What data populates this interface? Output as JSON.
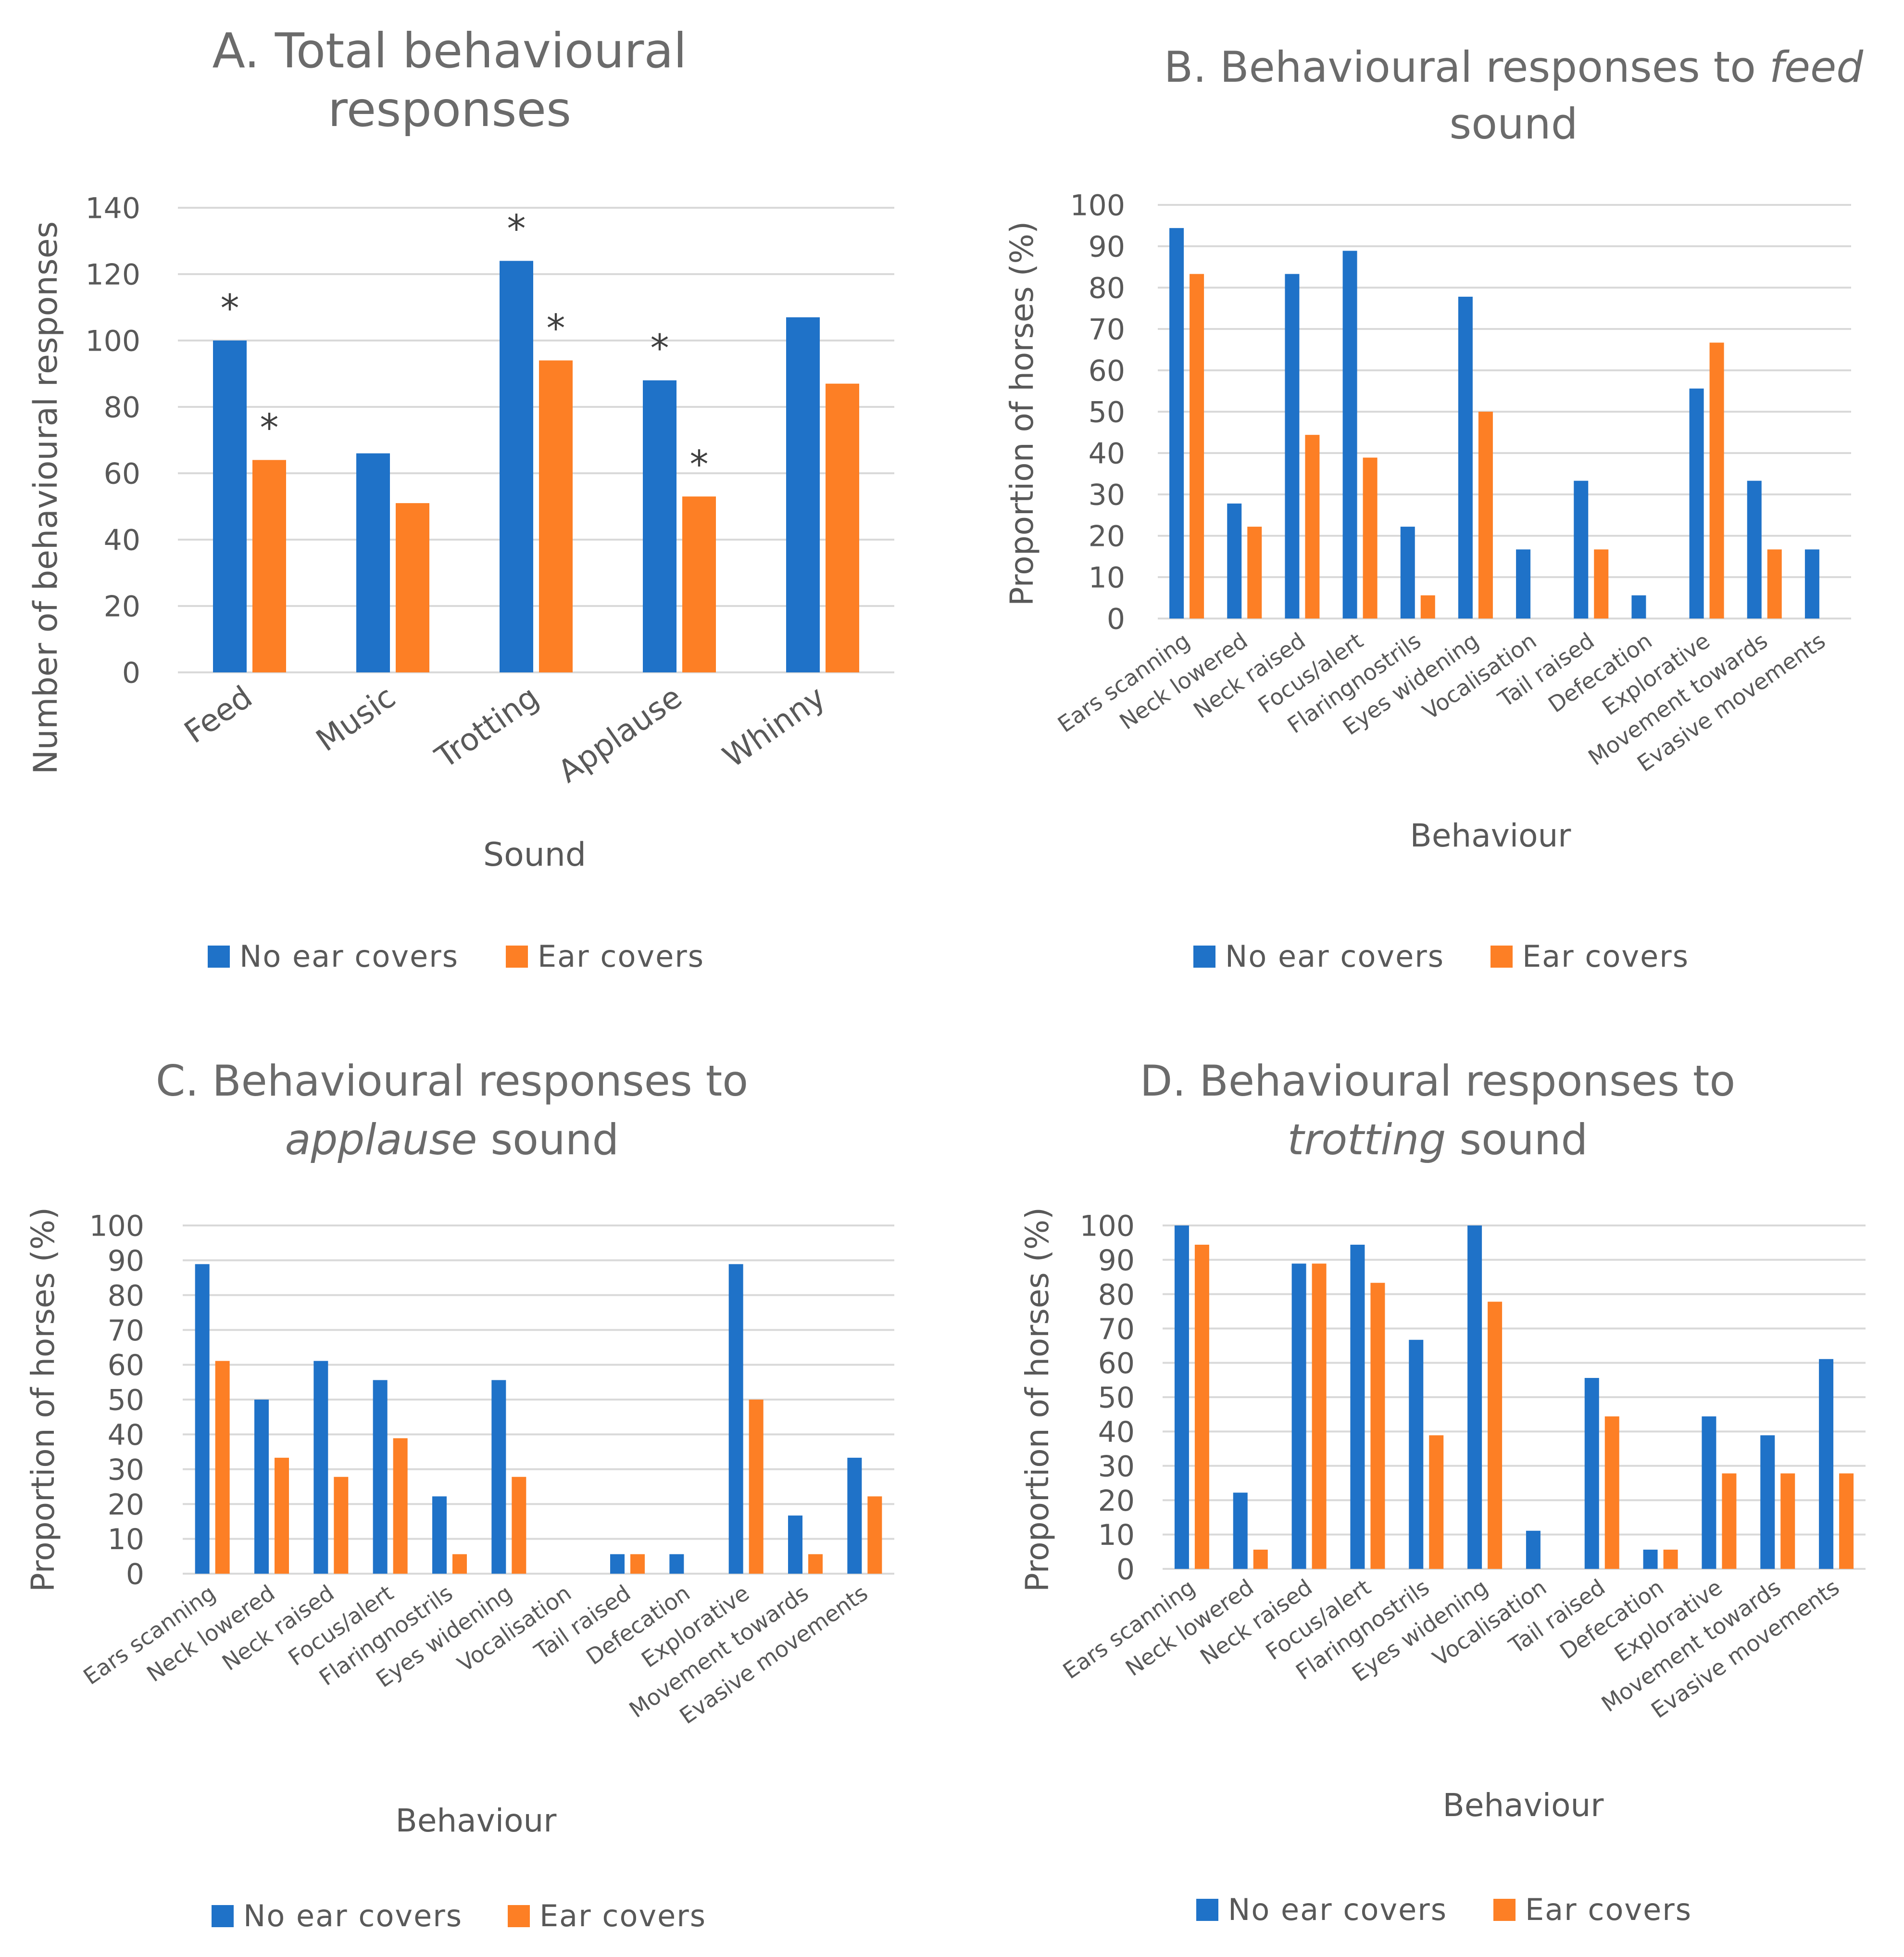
{
  "colors": {
    "no_ear_covers": "#1f72c8",
    "ear_covers": "#fd7f25"
  },
  "chart_data": [
    {
      "id": "A",
      "type": "bar",
      "title_lines": [
        [
          {
            "text": "A. Total behavioural",
            "italic": false
          }
        ],
        [
          {
            "text": "responses",
            "italic": false
          }
        ]
      ],
      "xlabel": "Sound",
      "ylabel": "Number of behavioural responses",
      "ylim": [
        0,
        140
      ],
      "yticks": [
        0,
        20,
        40,
        60,
        80,
        100,
        120,
        140
      ],
      "categories": [
        "Feed",
        "Music",
        "Trotting",
        "Applause",
        "Whinny"
      ],
      "series": [
        {
          "name": "No ear covers",
          "values": [
            100,
            66,
            124,
            88,
            107
          ],
          "significant": [
            true,
            false,
            true,
            true,
            false
          ]
        },
        {
          "name": "Ear covers",
          "values": [
            64,
            51,
            94,
            53,
            87
          ],
          "significant": [
            true,
            false,
            true,
            true,
            false
          ]
        }
      ],
      "significance_marker": "*",
      "legend": [
        "No ear covers",
        "Ear covers"
      ],
      "legend_position": "bottom"
    },
    {
      "id": "B",
      "type": "bar",
      "title_lines": [
        [
          {
            "text": "B. Behavioural responses to ",
            "italic": false
          },
          {
            "text": "feed",
            "italic": true
          }
        ],
        [
          {
            "text": "sound",
            "italic": false
          }
        ]
      ],
      "xlabel": "Behaviour",
      "ylabel": "Proportion of horses (%)",
      "ylim": [
        0,
        100
      ],
      "yticks": [
        0,
        10,
        20,
        30,
        40,
        50,
        60,
        70,
        80,
        90,
        100
      ],
      "categories": [
        "Ears scanning",
        "Neck lowered",
        "Neck raised",
        "Focus/alert",
        "Flaringnostrils",
        "Eyes widening",
        "Vocalisation",
        "Tail raised",
        "Defecation",
        "Explorative",
        "Movement towards",
        "Evasive movements"
      ],
      "series": [
        {
          "name": "No ear covers",
          "values": [
            94.4,
            27.8,
            83.3,
            88.9,
            22.2,
            77.8,
            16.7,
            33.3,
            5.6,
            55.6,
            33.3,
            16.7
          ]
        },
        {
          "name": "Ear covers",
          "values": [
            83.3,
            22.2,
            44.4,
            38.9,
            5.6,
            50.0,
            0,
            16.7,
            0,
            66.7,
            16.7,
            0
          ]
        }
      ],
      "legend": [
        "No ear covers",
        "Ear covers"
      ],
      "legend_position": "bottom"
    },
    {
      "id": "C",
      "type": "bar",
      "title_lines": [
        [
          {
            "text": "C. Behavioural responses to",
            "italic": false
          }
        ],
        [
          {
            "text": "applause",
            "italic": true
          },
          {
            "text": " sound",
            "italic": false
          }
        ]
      ],
      "xlabel": "Behaviour",
      "ylabel": "Proportion of horses (%)",
      "ylim": [
        0,
        100
      ],
      "yticks": [
        0,
        10,
        20,
        30,
        40,
        50,
        60,
        70,
        80,
        90,
        100
      ],
      "categories": [
        "Ears scanning",
        "Neck lowered",
        "Neck raised",
        "Focus/alert",
        "Flaringnostrils",
        "Eyes widening",
        "Vocalisation",
        "Tail raised",
        "Defecation",
        "Explorative",
        "Movement towards",
        "Evasive movements"
      ],
      "series": [
        {
          "name": "No ear covers",
          "values": [
            88.9,
            50.0,
            61.1,
            55.6,
            22.2,
            55.6,
            0,
            5.6,
            5.6,
            88.9,
            16.7,
            33.3
          ]
        },
        {
          "name": "Ear covers",
          "values": [
            61.1,
            33.3,
            27.8,
            38.9,
            5.6,
            27.8,
            0,
            5.6,
            0,
            50.0,
            5.6,
            22.2
          ]
        }
      ],
      "legend": [
        "No ear covers",
        "Ear covers"
      ],
      "legend_position": "bottom"
    },
    {
      "id": "D",
      "type": "bar",
      "title_lines": [
        [
          {
            "text": "D. Behavioural responses to",
            "italic": false
          }
        ],
        [
          {
            "text": "trotting",
            "italic": true
          },
          {
            "text": " sound",
            "italic": false
          }
        ]
      ],
      "xlabel": "Behaviour",
      "ylabel": "Proportion of horses (%)",
      "ylim": [
        0,
        100
      ],
      "yticks": [
        0,
        10,
        20,
        30,
        40,
        50,
        60,
        70,
        80,
        90,
        100
      ],
      "categories": [
        "Ears scanning",
        "Neck lowered",
        "Neck raised",
        "Focus/alert",
        "Flaringnostrils",
        "Eyes widening",
        "Vocalisation",
        "Tail raised",
        "Defecation",
        "Explorative",
        "Movement towards",
        "Evasive movements"
      ],
      "series": [
        {
          "name": "No ear covers",
          "values": [
            100,
            22.2,
            88.9,
            94.4,
            66.7,
            100,
            11.1,
            55.6,
            5.6,
            44.4,
            38.9,
            61.1
          ]
        },
        {
          "name": "Ear covers",
          "values": [
            94.4,
            5.6,
            88.9,
            83.3,
            38.9,
            77.8,
            0,
            44.4,
            5.6,
            27.8,
            27.8,
            27.8
          ]
        }
      ],
      "legend": [
        "No ear covers",
        "Ear covers"
      ],
      "legend_position": "bottom"
    }
  ]
}
